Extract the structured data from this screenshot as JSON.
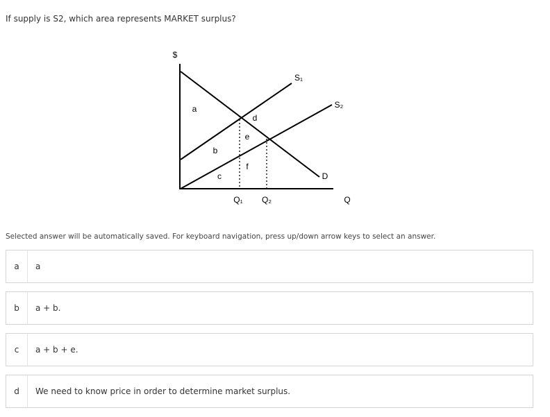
{
  "question": "If supply is S2, which area represents MARKET surplus?",
  "diagram": {
    "price_axis": "$",
    "quantity_axis": "Q",
    "supply1": "S₁",
    "supply2": "S₂",
    "demand": "D",
    "q1": "Q₁",
    "q2": "Q₂",
    "areas": [
      "a",
      "b",
      "c",
      "d",
      "e",
      "f"
    ]
  },
  "instruction": "Selected answer will be automatically saved. For keyboard navigation, press up/down arrow keys to select an answer.",
  "options": [
    {
      "letter": "a",
      "text": "a"
    },
    {
      "letter": "b",
      "text": "a + b."
    },
    {
      "letter": "c",
      "text": "a + b + e."
    },
    {
      "letter": "d",
      "text": "We need to know price in order to determine market surplus."
    }
  ]
}
